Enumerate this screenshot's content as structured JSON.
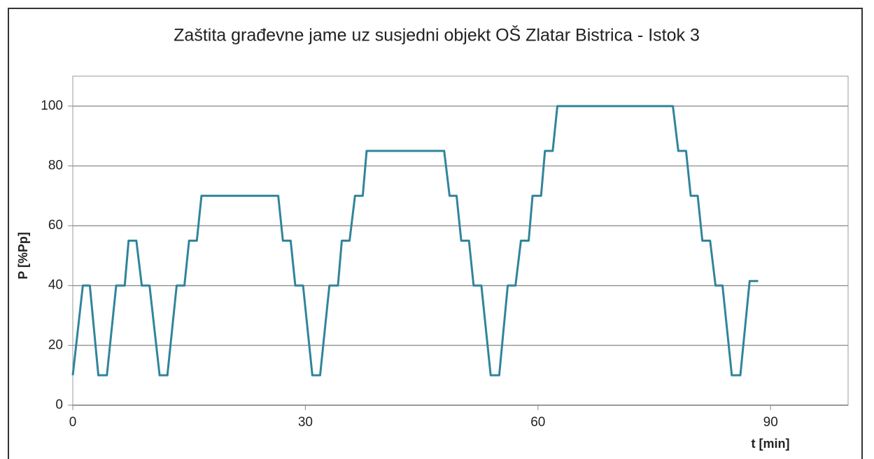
{
  "chart_data": {
    "type": "line",
    "title": "Zaštita građevne jame uz susjedni objekt OŠ Zlatar Bistrica - Istok 3",
    "xlabel": "t [min]",
    "ylabel": "P [%Pp]",
    "x": [
      0,
      1.3,
      2.2,
      3.3,
      4.4,
      5.6,
      6.7,
      7.2,
      8.2,
      8.9,
      9.9,
      11.2,
      12.2,
      13.4,
      14.4,
      15,
      16,
      16.6,
      26.5,
      27.1,
      28.1,
      28.7,
      29.7,
      30.9,
      31.9,
      33.1,
      34.2,
      34.7,
      35.7,
      36.4,
      37.4,
      37.9,
      47.9,
      48.6,
      49.5,
      50.1,
      51.1,
      51.7,
      52.7,
      53.9,
      55,
      56.1,
      57.1,
      57.8,
      58.8,
      59.3,
      60.4,
      60.9,
      61.9,
      62.5,
      77.4,
      78.1,
      79.1,
      79.7,
      80.6,
      81.2,
      82.2,
      82.9,
      83.8,
      85,
      86.1,
      87.3,
      88.4
    ],
    "series": [
      {
        "name": "P",
        "color": "#31849b",
        "values": [
          10,
          40,
          40,
          10,
          10,
          40,
          40,
          55,
          55,
          40,
          40,
          10,
          10,
          40,
          40,
          55,
          55,
          70,
          70,
          55,
          55,
          40,
          40,
          10,
          10,
          40,
          40,
          55,
          55,
          70,
          70,
          85,
          85,
          70,
          70,
          55,
          55,
          40,
          40,
          10,
          10,
          40,
          40,
          55,
          55,
          70,
          70,
          85,
          85,
          100,
          100,
          85,
          85,
          70,
          70,
          55,
          55,
          40,
          40,
          10,
          10,
          41.5,
          41.5
        ]
      }
    ],
    "xlim": [
      0,
      100
    ],
    "xticks": [
      0,
      30,
      60,
      90
    ],
    "ylim": [
      0,
      110
    ],
    "yticks": [
      0,
      20,
      40,
      60,
      80,
      100
    ],
    "grid": true
  }
}
